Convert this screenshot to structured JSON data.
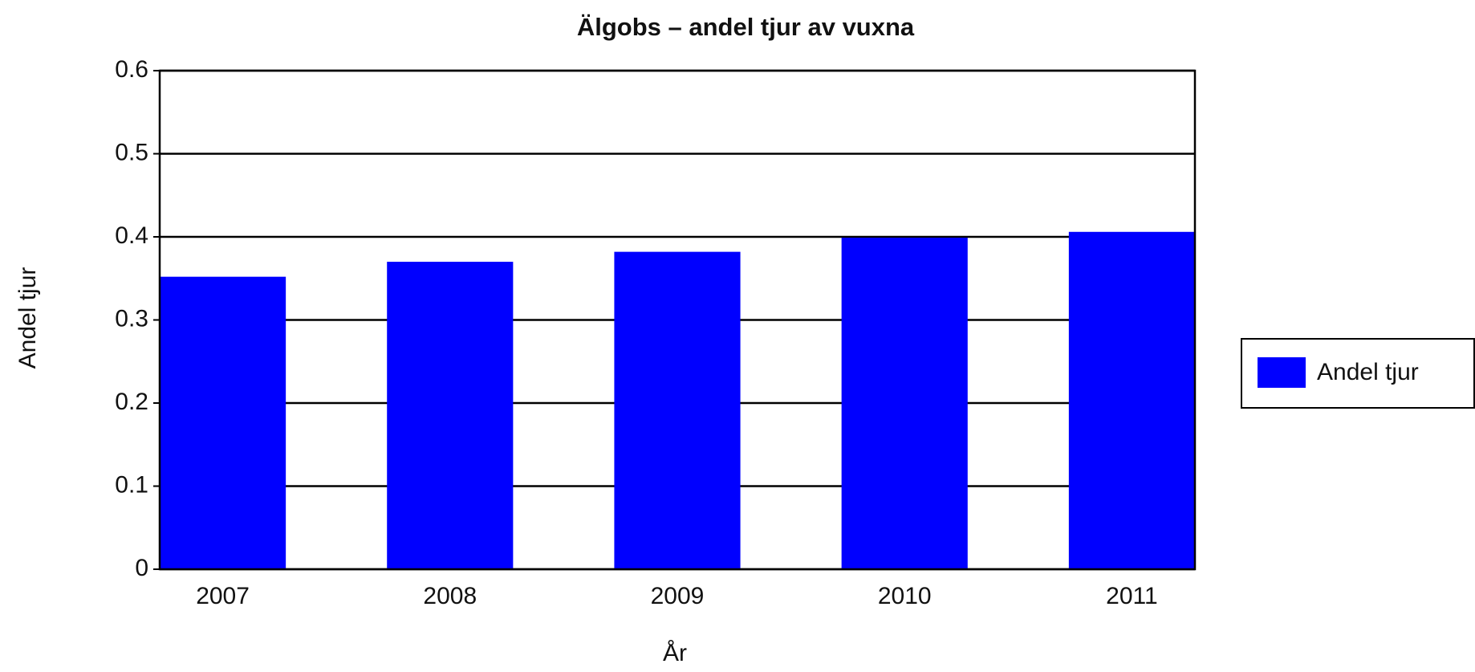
{
  "chart_data": {
    "type": "bar",
    "title": "Älgobs – andel tjur av vuxna",
    "x_label": "År",
    "y_label": "Andel tjur",
    "categories": [
      "2007",
      "2008",
      "2009",
      "2010",
      "2011"
    ],
    "series": [
      {
        "name": "Andel tjur",
        "color": "#0000ff",
        "values": [
          0.352,
          0.37,
          0.382,
          0.399,
          0.406
        ]
      }
    ],
    "ylim": [
      0,
      0.6
    ],
    "yticks": [
      0,
      0.1,
      0.2,
      0.3,
      0.4,
      0.5,
      0.6
    ],
    "grid": true,
    "legend": "right"
  }
}
